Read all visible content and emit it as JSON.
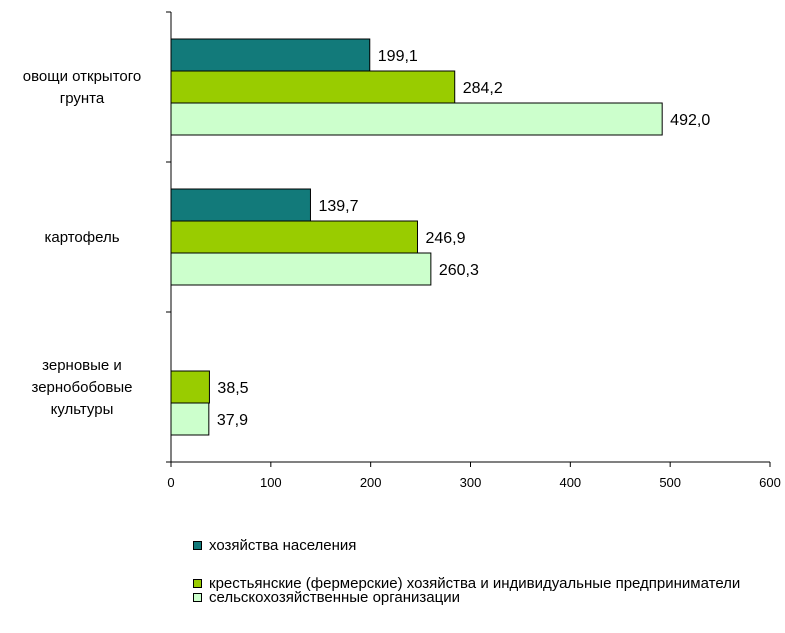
{
  "chart_data": {
    "type": "bar",
    "orientation": "horizontal",
    "title": "",
    "xlabel": "",
    "ylabel": "",
    "categories": [
      "овощи открытого грунта",
      "картофель",
      "зерновые и зернобобовые культуры"
    ],
    "category_lines": [
      [
        "овощи открытого",
        "грунта"
      ],
      [
        "картофель"
      ],
      [
        "зерновые и",
        "зернобобовые",
        "культуры"
      ]
    ],
    "series": [
      {
        "name": "хозяйства населения",
        "color": "#127a7a",
        "values": [
          199.1,
          139.7,
          null
        ],
        "labels": [
          "199,1",
          "139,7",
          ""
        ]
      },
      {
        "name": "крестьянские (фермерские) хозяйства и индивидуальные предприниматели",
        "color": "#99cc00",
        "values": [
          284.2,
          246.9,
          38.5
        ],
        "labels": [
          "284,2",
          "246,9",
          "38,5"
        ]
      },
      {
        "name": "сельскохозяйственные организации",
        "color": "#ccffcc",
        "values": [
          492.0,
          260.3,
          37.9
        ],
        "labels": [
          "492,0",
          "260,3",
          "37,9"
        ]
      }
    ],
    "xlim": [
      0,
      600
    ],
    "xticks": [
      0,
      100,
      200,
      300,
      400,
      500,
      600
    ],
    "grid": false,
    "legend_position": "bottom"
  },
  "legend": {
    "items": [
      {
        "label": "хозяйства населения",
        "color": "#127a7a"
      },
      {
        "label": "крестьянские (фермерские) хозяйства и индивидуальные предприниматели",
        "color": "#99cc00"
      },
      {
        "label": "сельскохозяйственные организации",
        "color": "#ccffcc"
      }
    ]
  }
}
